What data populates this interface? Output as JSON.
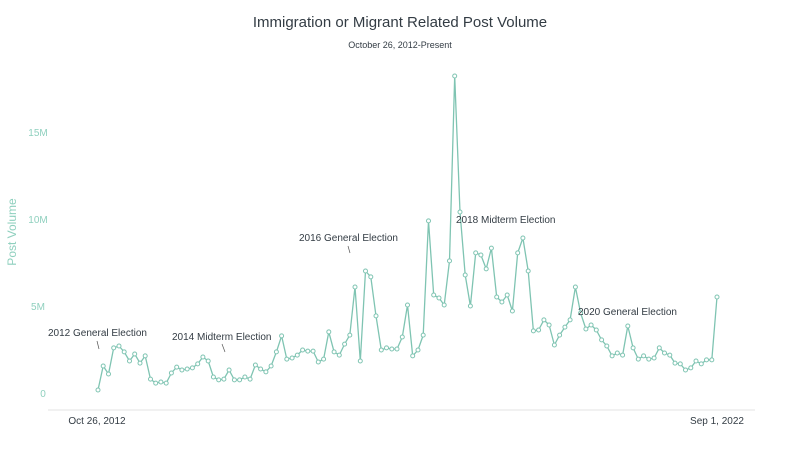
{
  "chart_data": {
    "type": "line",
    "title": "Immigration or Migrant Related Post Volume",
    "subtitle": "October 26, 2012-Present",
    "xlabel": "",
    "ylabel": "Post Volume",
    "ylim": [
      0,
      18.5
    ],
    "y_unit": "M",
    "yticks": [
      {
        "value": 0,
        "label": "0"
      },
      {
        "value": 5,
        "label": "5M"
      },
      {
        "value": 10,
        "label": "10M"
      },
      {
        "value": 15,
        "label": "15M"
      }
    ],
    "x_start_label": "Oct 26, 2012",
    "x_end_label": "Sep 1, 2022",
    "grid": false,
    "line_color": "#7fc4b2",
    "axis_label_color": "#8fd0be",
    "values": [
      0.17,
      1.55,
      1.09,
      2.59,
      2.7,
      2.36,
      1.84,
      2.24,
      1.72,
      2.13,
      0.8,
      0.57,
      0.63,
      0.57,
      1.15,
      1.49,
      1.32,
      1.38,
      1.44,
      1.67,
      2.07,
      1.84,
      0.92,
      0.75,
      0.8,
      1.32,
      0.75,
      0.75,
      0.92,
      0.8,
      1.61,
      1.38,
      1.21,
      1.55,
      2.36,
      3.28,
      1.95,
      2.01,
      2.18,
      2.47,
      2.41,
      2.41,
      1.78,
      1.95,
      3.51,
      2.36,
      2.18,
      2.81,
      3.33,
      6.09,
      1.84,
      7.01,
      6.67,
      4.43,
      2.47,
      2.59,
      2.53,
      2.53,
      3.22,
      5.06,
      2.13,
      2.47,
      3.33,
      9.89,
      5.63,
      5.46,
      5.06,
      7.59,
      18.22,
      10.4,
      6.78,
      5.0,
      8.05,
      7.93,
      7.13,
      8.33,
      5.52,
      5.23,
      5.63,
      4.71,
      8.05,
      8.91,
      7.01,
      3.57,
      3.62,
      4.2,
      3.91,
      2.76,
      3.33,
      3.79,
      4.2,
      6.09,
      4.6,
      3.68,
      3.91,
      3.62,
      3.05,
      2.7,
      2.13,
      2.3,
      2.18,
      3.85,
      2.59,
      1.95,
      2.13,
      1.95,
      2.01,
      2.59,
      2.3,
      2.18,
      1.72,
      1.67,
      1.32,
      1.44,
      1.84,
      1.67,
      1.9,
      1.9,
      5.52
    ],
    "annotations": [
      {
        "label": "2012 General Election",
        "x_index": 1
      },
      {
        "label": "2014 Midterm Election",
        "x_index": 24
      },
      {
        "label": "2016 General Election",
        "x_index": 49
      },
      {
        "label": "2018 Midterm Election",
        "x_index": 69
      },
      {
        "label": "2020 General Election",
        "x_index": 92
      }
    ]
  },
  "header": {
    "title": "Immigration or Migrant Related Post Volume",
    "subtitle": "October 26, 2012-Present"
  },
  "axes": {
    "y_title": "Post Volume",
    "y_ticks": [
      "0",
      "5M",
      "10M",
      "15M"
    ],
    "x_start": "Oct 26, 2012",
    "x_end": "Sep 1, 2022"
  },
  "annotations": {
    "a2012": "2012 General Election",
    "a2014": "2014 Midterm Election",
    "a2016": "2016 General Election",
    "a2018": "2018 Midterm Election",
    "a2020": "2020 General Election"
  }
}
